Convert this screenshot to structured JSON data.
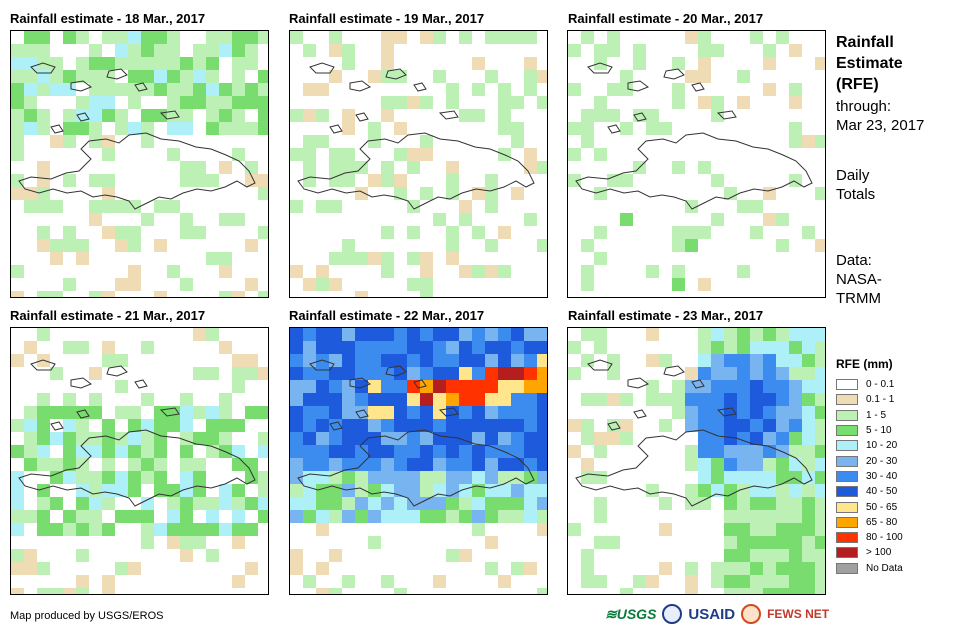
{
  "panels": [
    {
      "title": "Rainfall estimate - 18 Mar., 2017",
      "pattern": "north_light"
    },
    {
      "title": "Rainfall estimate - 19 Mar., 2017",
      "pattern": "scattered"
    },
    {
      "title": "Rainfall estimate - 20 Mar., 2017",
      "pattern": "west_light"
    },
    {
      "title": "Rainfall estimate - 21 Mar., 2017",
      "pattern": "center_light"
    },
    {
      "title": "Rainfall estimate - 22 Mar., 2017",
      "pattern": "heavy_north"
    },
    {
      "title": "Rainfall estimate - 23 Mar., 2017",
      "pattern": "east_moderate"
    }
  ],
  "side": {
    "title": "Rainfall\nEstimate\n(RFE)",
    "through": "through:\nMar 23, 2017",
    "daily": "Daily\nTotals",
    "source": "Data:\nNASA-\nTRMM"
  },
  "legend": {
    "title": "RFE (mm)",
    "classes": [
      {
        "label": "0 - 0.1",
        "color": "#ffffff"
      },
      {
        "label": "0.1 - 1",
        "color": "#f0dcb4"
      },
      {
        "label": "1 - 5",
        "color": "#bdf0b4"
      },
      {
        "label": "5 - 10",
        "color": "#78dc6e"
      },
      {
        "label": "10 - 20",
        "color": "#aef0f8"
      },
      {
        "label": "20 - 30",
        "color": "#78b4f0"
      },
      {
        "label": "30 - 40",
        "color": "#3c8cf0"
      },
      {
        "label": "40 - 50",
        "color": "#1e5adc"
      },
      {
        "label": "50 - 65",
        "color": "#ffe68c"
      },
      {
        "label": "65 - 80",
        "color": "#ffa500"
      },
      {
        "label": "80 - 100",
        "color": "#ff3200"
      },
      {
        "label": "> 100",
        "color": "#b41e1e"
      },
      {
        "label": "No Data",
        "color": "#a0a0a0"
      }
    ]
  },
  "credit": "Map produced by USGS/EROS",
  "logos": {
    "usgs": "≋USGS",
    "usaid": "USAID",
    "fews": "FEWS NET"
  }
}
